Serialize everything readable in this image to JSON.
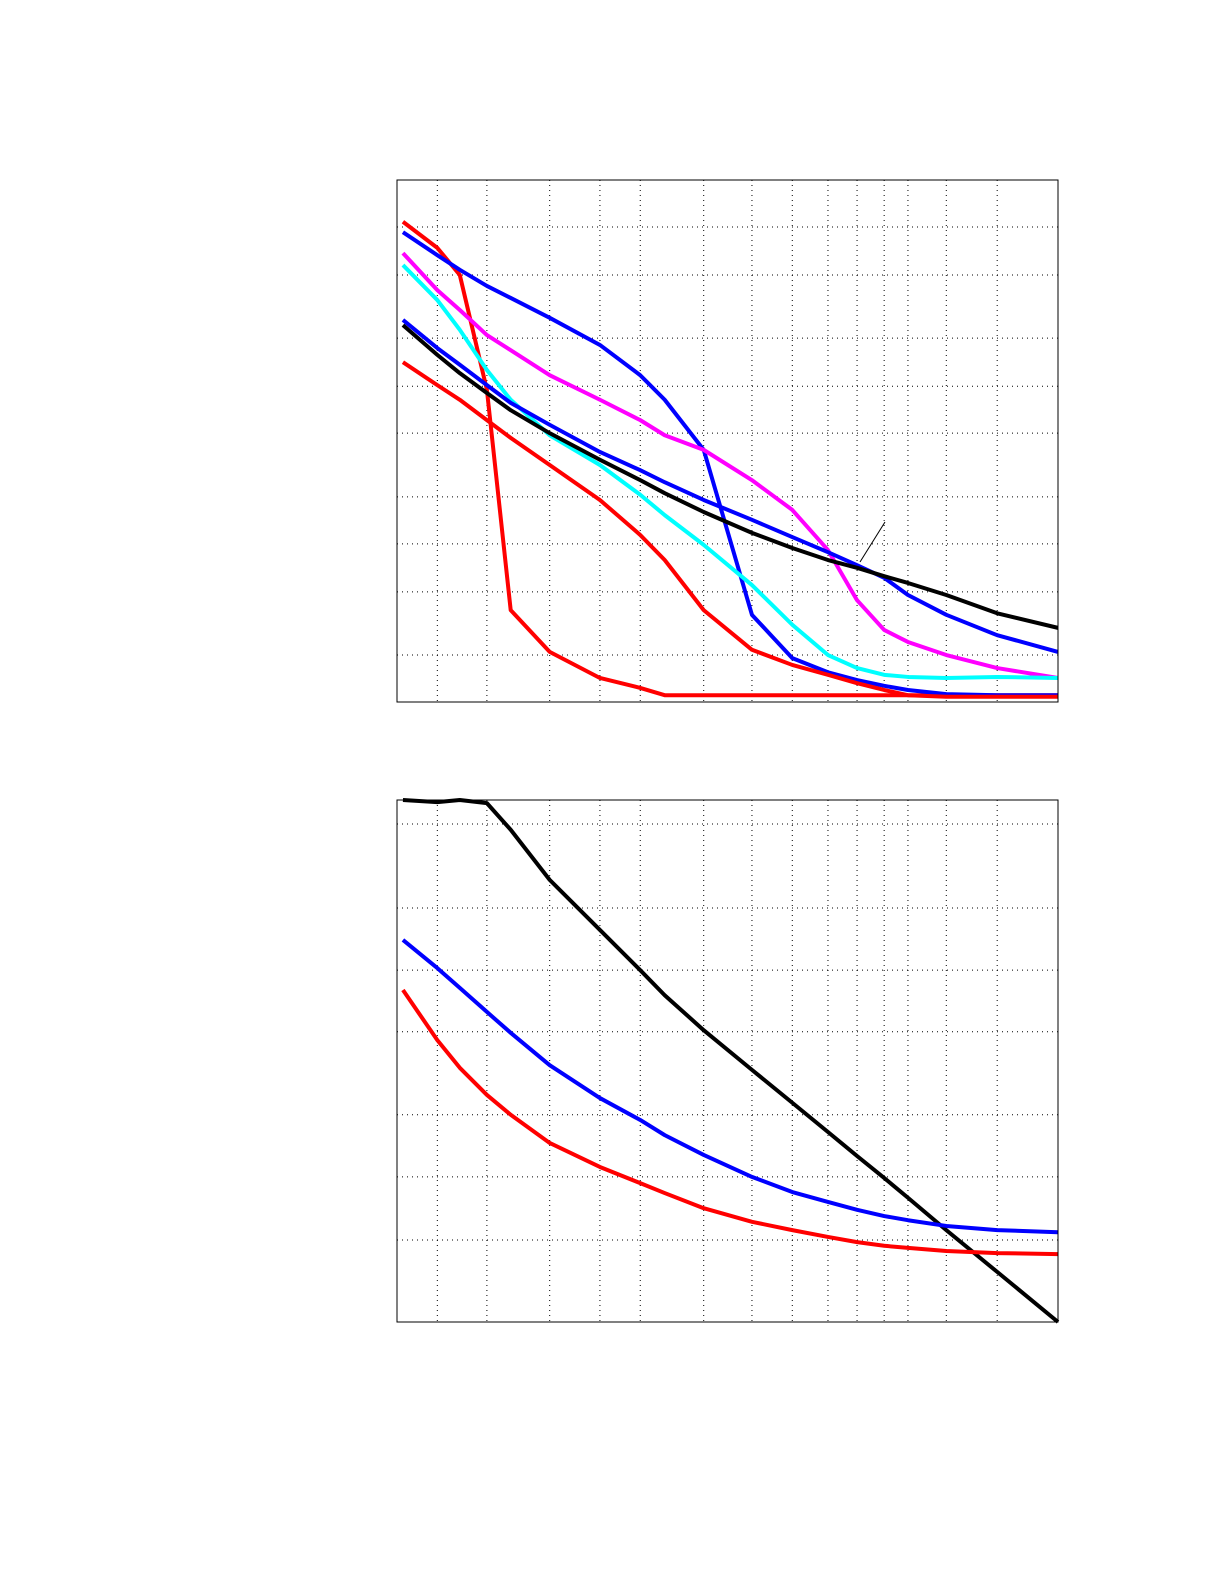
{
  "chart_data": [
    {
      "type": "line",
      "grid": true,
      "xlim": [
        0,
        100
      ],
      "xticks": [
        6.1,
        13.6,
        23.1,
        30.7,
        36.8,
        46.4,
        53.7,
        59.8,
        65.2,
        69.6,
        73.7,
        77.3,
        83.1,
        90.8
      ],
      "ylim": [
        0,
        100
      ],
      "yticks": [
        9.0,
        21.1,
        30.3,
        39.3,
        51.5,
        60.5,
        69.7,
        81.8,
        91.0
      ],
      "x": [
        0.9,
        6.1,
        9.5,
        13.6,
        17.2,
        23.1,
        30.7,
        36.8,
        40.5,
        46.4,
        53.7,
        59.8,
        65.2,
        69.6,
        73.7,
        77.3,
        83.1,
        90.8,
        100
      ],
      "series": [
        {
          "color": "#ff0000",
          "values": [
            92.0,
            87.0,
            81.8,
            59.8,
            17.6,
            9.6,
            4.6,
            2.7,
            1.3,
            1.3,
            1.3,
            1.3,
            1.3,
            1.3,
            1.3,
            1.3,
            1.3,
            1.3,
            1.3
          ]
        },
        {
          "color": "#0000ff",
          "values": [
            90.0,
            85.6,
            82.8,
            79.7,
            77.4,
            73.6,
            68.4,
            62.6,
            57.9,
            48.3,
            16.7,
            8.4,
            5.7,
            4.2,
            3.1,
            2.3,
            1.5,
            1.3,
            1.3
          ]
        },
        {
          "color": "#ff00ff",
          "values": [
            86.0,
            78.9,
            75.1,
            70.3,
            67.4,
            62.6,
            57.9,
            54.0,
            51.1,
            48.3,
            42.5,
            36.8,
            29.1,
            19.5,
            13.8,
            11.5,
            9.0,
            6.5,
            4.6
          ]
        },
        {
          "color": "#00ffff",
          "values": [
            83.7,
            77.0,
            71.3,
            63.6,
            57.9,
            51.1,
            45.4,
            39.7,
            35.8,
            30.1,
            22.4,
            14.8,
            9.0,
            6.5,
            5.2,
            4.8,
            4.6,
            4.8,
            4.6
          ]
        },
        {
          "color": "#0000ff",
          "values": [
            73.2,
            67.8,
            64.6,
            60.7,
            57.3,
            53.1,
            47.9,
            44.4,
            42.1,
            38.7,
            34.9,
            31.6,
            28.7,
            26.2,
            23.8,
            20.5,
            16.7,
            12.8,
            9.6
          ]
        },
        {
          "color": "#000000",
          "values": [
            72.2,
            66.5,
            63.0,
            59.2,
            55.9,
            51.5,
            46.4,
            42.5,
            40.0,
            36.4,
            32.4,
            29.5,
            27.2,
            25.7,
            24.1,
            22.8,
            20.5,
            17.0,
            14.2
          ]
        },
        {
          "color": "#ff0000",
          "values": [
            65.1,
            60.7,
            57.9,
            54.0,
            50.6,
            45.4,
            38.7,
            32.0,
            27.2,
            17.6,
            10.0,
            7.1,
            5.2,
            3.6,
            2.3,
            1.3,
            1.0,
            1.0,
            1.0
          ]
        }
      ]
    },
    {
      "type": "line",
      "grid": true,
      "xlim": [
        0,
        100
      ],
      "xticks": [
        6.1,
        13.6,
        23.1,
        30.7,
        36.8,
        46.4,
        53.7,
        59.8,
        65.2,
        69.6,
        73.7,
        77.3,
        83.1,
        90.8
      ],
      "ylim": [
        0,
        100
      ],
      "yticks": [
        15.7,
        27.8,
        39.7,
        55.6,
        67.4,
        79.3,
        95.4
      ],
      "x": [
        0.9,
        6.1,
        9.5,
        13.6,
        17.2,
        23.1,
        30.7,
        36.8,
        40.5,
        46.4,
        53.7,
        59.8,
        65.2,
        69.6,
        73.7,
        77.3,
        83.1,
        90.8,
        100
      ],
      "series": [
        {
          "color": "#000000",
          "values": [
            100,
            99.6,
            100,
            99.4,
            94.3,
            84.7,
            75.1,
            67.4,
            62.6,
            55.9,
            48.3,
            42.0,
            36.4,
            31.8,
            27.6,
            23.8,
            17.6,
            9.6,
            0
          ]
        },
        {
          "color": "#0000ff",
          "values": [
            73.2,
            67.8,
            64.0,
            59.4,
            55.4,
            49.2,
            42.9,
            38.7,
            35.8,
            32.0,
            27.8,
            24.9,
            23.0,
            21.5,
            20.3,
            19.5,
            18.4,
            17.6,
            17.2
          ]
        },
        {
          "color": "#ff0000",
          "values": [
            63.6,
            54.0,
            48.7,
            43.5,
            39.7,
            34.3,
            29.7,
            26.6,
            24.7,
            21.8,
            19.2,
            17.6,
            16.3,
            15.3,
            14.6,
            14.2,
            13.6,
            13.2,
            13.0
          ]
        }
      ]
    }
  ]
}
